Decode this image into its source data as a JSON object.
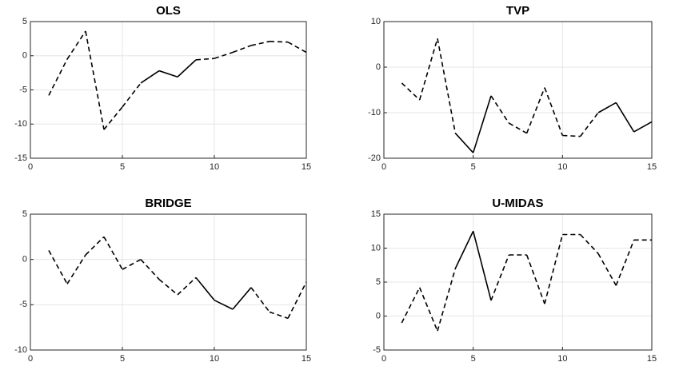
{
  "chart_data": [
    {
      "type": "line",
      "title": "OLS",
      "x": [
        1,
        2,
        3,
        4,
        5,
        6,
        7,
        8,
        9,
        10,
        11,
        12,
        13,
        14,
        15
      ],
      "values": [
        -5.8,
        -0.5,
        3.6,
        -10.8,
        -7.5,
        -4,
        -2.2,
        -3.1,
        -0.6,
        -0.4,
        0.5,
        1.5,
        2.1,
        2,
        0.5
      ],
      "segment_styles": [
        "dashed",
        "dashed",
        "dashed",
        "dashed",
        "dashed",
        "solid",
        "solid",
        "solid",
        "dashed",
        "dashed",
        "dashed",
        "dashed",
        "dashed",
        "dashed"
      ],
      "color": "#000000",
      "xlim": [
        0,
        15
      ],
      "xticks": [
        0,
        5,
        10,
        15
      ],
      "ylim": [
        -15,
        5
      ],
      "yticks": [
        -15,
        -10,
        -5,
        0,
        5
      ],
      "grid": true
    },
    {
      "type": "line",
      "title": "TVP",
      "x": [
        1,
        2,
        3,
        4,
        5,
        6,
        7,
        8,
        9,
        10,
        11,
        12,
        13,
        14,
        15
      ],
      "values": [
        -3.5,
        -7.2,
        6.3,
        -14.5,
        -18.8,
        -6.3,
        -12.3,
        -14.5,
        -4.5,
        -15,
        -15.2,
        -10,
        -7.8,
        -14.2,
        -12
      ],
      "segment_styles": [
        "dashed",
        "dashed",
        "dashed",
        "solid",
        "solid",
        "dashed",
        "dashed",
        "dashed",
        "dashed",
        "dashed",
        "dashed",
        "solid",
        "solid",
        "solid"
      ],
      "color": "#000000",
      "xlim": [
        0,
        15
      ],
      "xticks": [
        0,
        5,
        10,
        15
      ],
      "ylim": [
        -20,
        10
      ],
      "yticks": [
        -20,
        -10,
        0,
        10
      ],
      "grid": true
    },
    {
      "type": "line",
      "title": "BRIDGE",
      "x": [
        1,
        2,
        3,
        4,
        5,
        6,
        7,
        8,
        9,
        10,
        11,
        12,
        13,
        14,
        15
      ],
      "values": [
        1,
        -2.7,
        0.5,
        2.5,
        -1.1,
        0,
        -2.2,
        -3.9,
        -2,
        -4.5,
        -5.5,
        -3.1,
        -5.8,
        -6.5,
        -2.5
      ],
      "segment_styles": [
        "dashed",
        "dashed",
        "dashed",
        "dashed",
        "dashed",
        "dashed",
        "dashed",
        "dashed",
        "solid",
        "solid",
        "solid",
        "dashed",
        "dashed",
        "dashed"
      ],
      "color": "#000000",
      "xlim": [
        0,
        15
      ],
      "xticks": [
        0,
        5,
        10,
        15
      ],
      "ylim": [
        -10,
        5
      ],
      "yticks": [
        -10,
        -5,
        0,
        5
      ],
      "grid": true
    },
    {
      "type": "line",
      "title": "U-MIDAS",
      "x": [
        1,
        2,
        3,
        4,
        5,
        6,
        7,
        8,
        9,
        10,
        11,
        12,
        13,
        14,
        15
      ],
      "values": [
        -1,
        4.2,
        -2.2,
        7,
        12.5,
        2.3,
        9,
        9,
        1.8,
        12,
        12,
        9.2,
        4.5,
        11.2,
        11.2
      ],
      "segment_styles": [
        "dashed",
        "dashed",
        "dashed",
        "solid",
        "solid",
        "dashed",
        "dashed",
        "dashed",
        "dashed",
        "dashed",
        "dashed",
        "dashed",
        "dashed",
        "dashed"
      ],
      "color": "#000000",
      "xlim": [
        0,
        15
      ],
      "xticks": [
        0,
        5,
        10,
        15
      ],
      "ylim": [
        -5,
        15
      ],
      "yticks": [
        -5,
        0,
        5,
        10,
        15
      ],
      "grid": true
    }
  ]
}
